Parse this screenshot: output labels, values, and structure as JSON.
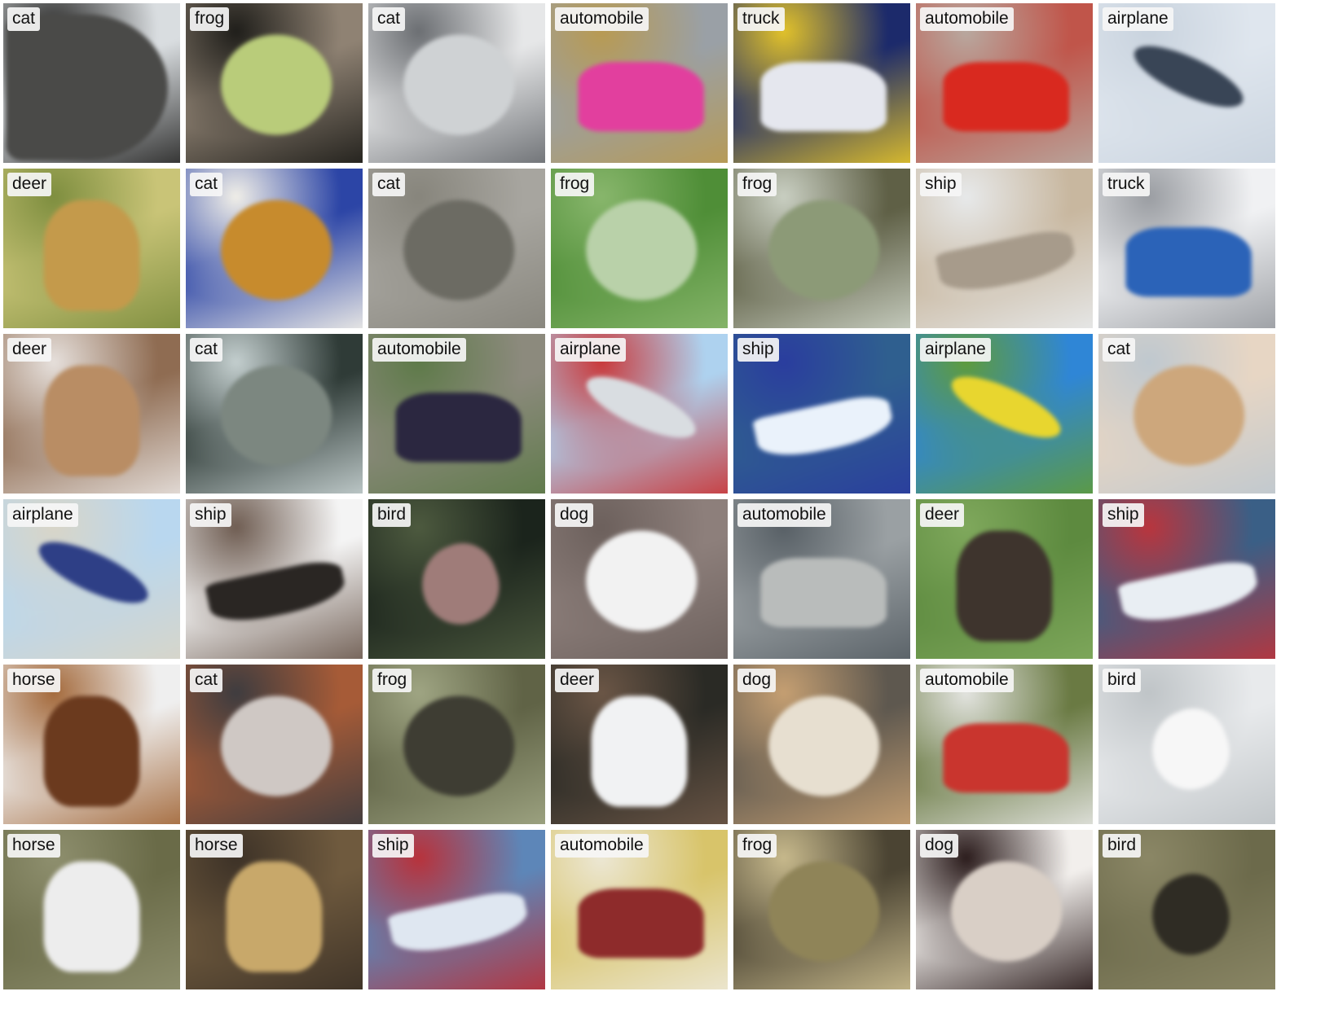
{
  "tiles": [
    {
      "label": "cat",
      "colors": [
        "#d9dde0",
        "#4a4a48",
        "#2b2b2a"
      ],
      "subject": "dark"
    },
    {
      "label": "frog",
      "colors": [
        "#8f8273",
        "#b9cc7a",
        "#1f1e1a"
      ],
      "subject": "frog"
    },
    {
      "label": "cat",
      "colors": [
        "#e6e7e8",
        "#cfd2d4",
        "#6b6e72"
      ],
      "subject": "cat"
    },
    {
      "label": "automobile",
      "colors": [
        "#9aa0a6",
        "#e23f9e",
        "#b89a52"
      ],
      "subject": "car"
    },
    {
      "label": "truck",
      "colors": [
        "#1c2a6b",
        "#e5e7ee",
        "#e2c22a"
      ],
      "subject": "truck"
    },
    {
      "label": "automobile",
      "colors": [
        "#c0554a",
        "#d9291f",
        "#b8a89f"
      ],
      "subject": "car"
    },
    {
      "label": "airplane",
      "colors": [
        "#dfe6ee",
        "#394556",
        "#c9d3de"
      ],
      "subject": "plane"
    },
    {
      "label": "deer",
      "colors": [
        "#c9c477",
        "#c49a4b",
        "#7e8e3f"
      ],
      "subject": "deer"
    },
    {
      "label": "cat",
      "colors": [
        "#2c45a6",
        "#c78b2d",
        "#f1efe8"
      ],
      "subject": "cat"
    },
    {
      "label": "cat",
      "colors": [
        "#a7a59f",
        "#6c6b63",
        "#87857c"
      ],
      "subject": "cat"
    },
    {
      "label": "frog",
      "colors": [
        "#4f8e37",
        "#b9d1a9",
        "#88b66c"
      ],
      "subject": "frog"
    },
    {
      "label": "frog",
      "colors": [
        "#5f6046",
        "#8c9a77",
        "#c9cfc2"
      ],
      "subject": "frog"
    },
    {
      "label": "ship",
      "colors": [
        "#c8b79f",
        "#a79b8b",
        "#e7e9ea"
      ],
      "subject": "ship"
    },
    {
      "label": "truck",
      "colors": [
        "#f0f1f3",
        "#2b63b8",
        "#9a9da2"
      ],
      "subject": "truck"
    },
    {
      "label": "deer",
      "colors": [
        "#8f6c52",
        "#b98d64",
        "#e6e0dc"
      ],
      "subject": "deer"
    },
    {
      "label": "cat",
      "colors": [
        "#2f3b37",
        "#7c8780",
        "#c4cfcf"
      ],
      "subject": "cat"
    },
    {
      "label": "automobile",
      "colors": [
        "#8c8a7d",
        "#2b2740",
        "#5e7a49"
      ],
      "subject": "car"
    },
    {
      "label": "airplane",
      "colors": [
        "#aed2ef",
        "#d9dde1",
        "#c9393b"
      ],
      "subject": "plane"
    },
    {
      "label": "ship",
      "colors": [
        "#2f5f8f",
        "#eaf2fb",
        "#2a3d9e"
      ],
      "subject": "ship"
    },
    {
      "label": "airplane",
      "colors": [
        "#2f86d6",
        "#e8d62f",
        "#5e9b3d"
      ],
      "subject": "plane"
    },
    {
      "label": "cat",
      "colors": [
        "#e7d6c4",
        "#cda77c",
        "#bfc8cf"
      ],
      "subject": "cat"
    },
    {
      "label": "airplane",
      "colors": [
        "#b9d7ef",
        "#2e3f86",
        "#d8d5c8"
      ],
      "subject": "plane"
    },
    {
      "label": "ship",
      "colors": [
        "#f4f4f4",
        "#2a2623",
        "#6f5d52"
      ],
      "subject": "ship"
    },
    {
      "label": "bird",
      "colors": [
        "#1b241c",
        "#9f7c79",
        "#4d5a3f"
      ],
      "subject": "bird"
    },
    {
      "label": "dog",
      "colors": [
        "#8d7f7b",
        "#f2f2f2",
        "#6c605c"
      ],
      "subject": "dog"
    },
    {
      "label": "automobile",
      "colors": [
        "#9aa0a3",
        "#b9bcbb",
        "#586066"
      ],
      "subject": "car"
    },
    {
      "label": "deer",
      "colors": [
        "#5d8a3f",
        "#3e342d",
        "#7fa85c"
      ],
      "subject": "deer"
    },
    {
      "label": "ship",
      "colors": [
        "#3a5f86",
        "#e9eef3",
        "#b9353d"
      ],
      "subject": "ship"
    },
    {
      "label": "horse",
      "colors": [
        "#efefef",
        "#6b3a1e",
        "#a46a3c"
      ],
      "subject": "horse"
    },
    {
      "label": "cat",
      "colors": [
        "#a65b37",
        "#cfc8c4",
        "#3e3c3f"
      ],
      "subject": "cat"
    },
    {
      "label": "frog",
      "colors": [
        "#606346",
        "#3e3d33",
        "#9fa583"
      ],
      "subject": "frog"
    },
    {
      "label": "deer",
      "colors": [
        "#2a2a25",
        "#f1f2f3",
        "#6b5646"
      ],
      "subject": "deer"
    },
    {
      "label": "dog",
      "colors": [
        "#5e584f",
        "#e7dfd0",
        "#c59f72"
      ],
      "subject": "dog"
    },
    {
      "label": "automobile",
      "colors": [
        "#6a7a43",
        "#c9352e",
        "#e3e4e0"
      ],
      "subject": "car"
    },
    {
      "label": "bird",
      "colors": [
        "#e8eaec",
        "#f7f7f7",
        "#bfc4c7"
      ],
      "subject": "bird"
    },
    {
      "label": "horse",
      "colors": [
        "#6a6b48",
        "#ededed",
        "#8e8f6e"
      ],
      "subject": "horse"
    },
    {
      "label": "horse",
      "colors": [
        "#6f5a3e",
        "#c8a86a",
        "#3d3227"
      ],
      "subject": "horse"
    },
    {
      "label": "ship",
      "colors": [
        "#5d86b8",
        "#dfe7f1",
        "#b8323b"
      ],
      "subject": "ship"
    },
    {
      "label": "automobile",
      "colors": [
        "#d8c46a",
        "#8e2b2b",
        "#ece7d4"
      ],
      "subject": "car"
    },
    {
      "label": "frog",
      "colors": [
        "#4b4433",
        "#8f8458",
        "#c7b98c"
      ],
      "subject": "frog"
    },
    {
      "label": "dog",
      "colors": [
        "#f2efec",
        "#d9cfc6",
        "#2b1c1c"
      ],
      "subject": "dog"
    },
    {
      "label": "bird",
      "colors": [
        "#6c6a4b",
        "#2f2c24",
        "#8b8766"
      ],
      "subject": "bird"
    }
  ]
}
